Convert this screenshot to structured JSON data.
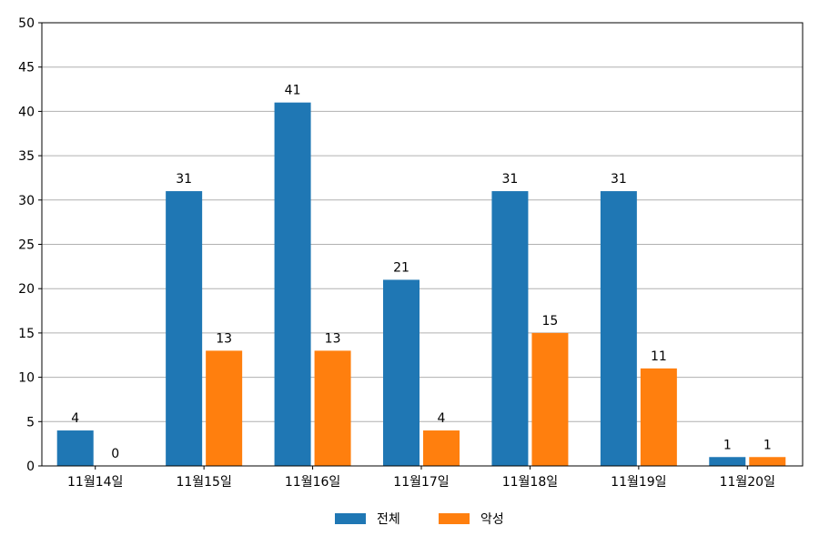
{
  "chart_data": {
    "type": "bar",
    "categories": [
      "11월14일",
      "11월15일",
      "11월16일",
      "11월17일",
      "11월18일",
      "11월19일",
      "11월20일"
    ],
    "series": [
      {
        "name": "전체",
        "color": "#1f77b4",
        "values": [
          4,
          31,
          41,
          21,
          31,
          31,
          1
        ]
      },
      {
        "name": "악성",
        "color": "#ff7f0e",
        "values": [
          0,
          13,
          13,
          4,
          15,
          11,
          1
        ]
      }
    ],
    "title": "",
    "xlabel": "",
    "ylabel": "",
    "ylim": [
      0,
      50
    ],
    "yticks": [
      0,
      5,
      10,
      15,
      20,
      25,
      30,
      35,
      40,
      45,
      50
    ],
    "grid": "y",
    "legend": "bottom-center",
    "data_labels": true
  }
}
